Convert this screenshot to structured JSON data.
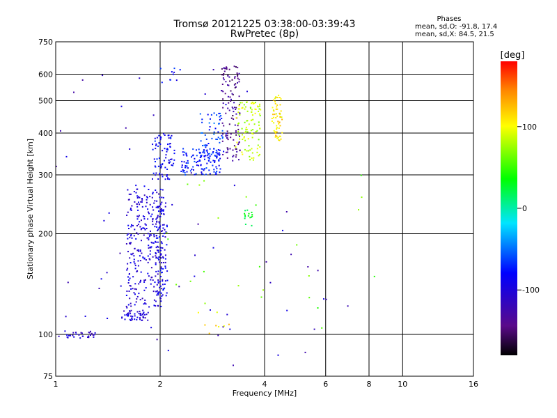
{
  "title_line1": "Tromsø 20121225 03:38:00-03:39:43",
  "title_line2": "RwPretec (8p)",
  "phases": {
    "title": "Phases",
    "o_line": "mean, sd,O: -91.8, 17.4",
    "x_line": "mean, sd,X: 84.5, 21.5"
  },
  "colorbar": {
    "unit": "[deg]",
    "range": [
      -180,
      180
    ],
    "ticks": [
      100,
      0,
      -100
    ],
    "tick_labels": [
      "100",
      "0",
      "-100"
    ]
  },
  "chart_data": {
    "type": "scatter",
    "xlabel": "Frequency [MHz]",
    "ylabel": "Stationary phase Virtual Height [km]",
    "x_scale": "log",
    "y_scale": "log",
    "xlim": [
      1,
      16
    ],
    "ylim": [
      75,
      750
    ],
    "x_ticks": [
      1,
      2,
      4,
      6,
      8,
      10,
      16
    ],
    "y_ticks": [
      75,
      100,
      200,
      300,
      400,
      500,
      600,
      750
    ],
    "x_gridlines": [
      2,
      4,
      6,
      8,
      10
    ],
    "y_gridlines": [
      100,
      200,
      300,
      400,
      500,
      600
    ],
    "grid": true,
    "color_scale": "phase in degrees (rainbow, -180 black/purple to +180 red)",
    "clusters": [
      {
        "f": [
          1.02,
          1.3
        ],
        "h": [
          97,
          103
        ],
        "phase": -105,
        "n": 30
      },
      {
        "f": [
          1.55,
          1.85
        ],
        "h": [
          110,
          118
        ],
        "phase": -105,
        "n": 50
      },
      {
        "f": [
          1.6,
          2.05
        ],
        "h": [
          120,
          280
        ],
        "phase": -100,
        "n": 300
      },
      {
        "f": [
          1.95,
          2.1
        ],
        "h": [
          130,
          250
        ],
        "phase": -92,
        "n": 80
      },
      {
        "f": [
          1.9,
          2.2
        ],
        "h": [
          290,
          400
        ],
        "phase": -85,
        "n": 80
      },
      {
        "f": [
          2.3,
          3.0
        ],
        "h": [
          300,
          360
        ],
        "phase": -75,
        "n": 120
      },
      {
        "f": [
          2.6,
          3.1
        ],
        "h": [
          340,
          460
        ],
        "phase": -65,
        "n": 60
      },
      {
        "f": [
          3.0,
          3.4
        ],
        "h": [
          330,
          640
        ],
        "phase": -140,
        "n": 120
      },
      {
        "f": [
          3.3,
          3.9
        ],
        "h": [
          330,
          500
        ],
        "phase": 85,
        "n": 100
      },
      {
        "f": [
          4.2,
          4.5
        ],
        "h": [
          380,
          520
        ],
        "phase": 110,
        "n": 60
      },
      {
        "f": [
          2.0,
          2.3
        ],
        "h": [
          560,
          630
        ],
        "phase": -80,
        "n": 10
      },
      {
        "f": [
          1.0,
          7.0
        ],
        "h": [
          80,
          650
        ],
        "phase": -110,
        "n": 60
      },
      {
        "f": [
          2.0,
          9.0
        ],
        "h": [
          95,
          300
        ],
        "phase": 60,
        "n": 25
      },
      {
        "f": [
          3.5,
          3.7
        ],
        "h": [
          210,
          240
        ],
        "phase": 25,
        "n": 15
      },
      {
        "f": [
          2.3,
          3.2
        ],
        "h": [
          100,
          125
        ],
        "phase": 110,
        "n": 8
      }
    ]
  }
}
